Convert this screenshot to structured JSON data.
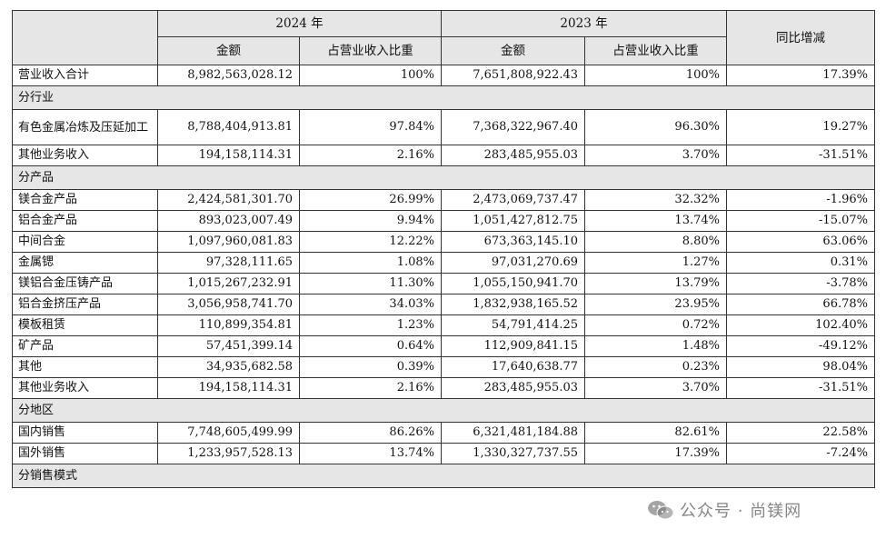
{
  "header": {
    "year_2024": "2024 年",
    "year_2023": "2023 年",
    "amount": "金额",
    "ratio": "占营业收入比重",
    "yoy": "同比增减"
  },
  "rows": [
    {
      "type": "data",
      "label": "营业收入合计",
      "a2024": "8,982,563,028.12",
      "r2024": "100%",
      "a2023": "7,651,808,922.43",
      "r2023": "100%",
      "yoy": "17.39%"
    },
    {
      "type": "section",
      "label": "分行业"
    },
    {
      "type": "data",
      "tall": true,
      "label": "有色金属冶炼及压延加工",
      "a2024": "8,788,404,913.81",
      "r2024": "97.84%",
      "a2023": "7,368,322,967.40",
      "r2023": "96.30%",
      "yoy": "19.27%"
    },
    {
      "type": "data",
      "label": "其他业务收入",
      "a2024": "194,158,114.31",
      "r2024": "2.16%",
      "a2023": "283,485,955.03",
      "r2023": "3.70%",
      "yoy": "-31.51%"
    },
    {
      "type": "section",
      "label": "分产品"
    },
    {
      "type": "data",
      "label": "镁合金产品",
      "a2024": "2,424,581,301.70",
      "r2024": "26.99%",
      "a2023": "2,473,069,737.47",
      "r2023": "32.32%",
      "yoy": "-1.96%"
    },
    {
      "type": "data",
      "label": "铝合金产品",
      "a2024": "893,023,007.49",
      "r2024": "9.94%",
      "a2023": "1,051,427,812.75",
      "r2023": "13.74%",
      "yoy": "-15.07%"
    },
    {
      "type": "data",
      "label": "中间合金",
      "a2024": "1,097,960,081.83",
      "r2024": "12.22%",
      "a2023": "673,363,145.10",
      "r2023": "8.80%",
      "yoy": "63.06%"
    },
    {
      "type": "data",
      "label": "金属锶",
      "a2024": "97,328,111.65",
      "r2024": "1.08%",
      "a2023": "97,031,270.69",
      "r2023": "1.27%",
      "yoy": "0.31%"
    },
    {
      "type": "data",
      "label": "镁铝合金压铸产品",
      "a2024": "1,015,267,232.91",
      "r2024": "11.30%",
      "a2023": "1,055,150,941.70",
      "r2023": "13.79%",
      "yoy": "-3.78%"
    },
    {
      "type": "data",
      "label": "铝合金挤压产品",
      "a2024": "3,056,958,741.70",
      "r2024": "34.03%",
      "a2023": "1,832,938,165.52",
      "r2023": "23.95%",
      "yoy": "66.78%"
    },
    {
      "type": "data",
      "label": "模板租赁",
      "a2024": "110,899,354.81",
      "r2024": "1.23%",
      "a2023": "54,791,414.25",
      "r2023": "0.72%",
      "yoy": "102.40%"
    },
    {
      "type": "data",
      "label": "矿产品",
      "a2024": "57,451,399.14",
      "r2024": "0.64%",
      "a2023": "112,909,841.15",
      "r2023": "1.48%",
      "yoy": "-49.12%"
    },
    {
      "type": "data",
      "label": "其他",
      "a2024": "34,935,682.58",
      "r2024": "0.39%",
      "a2023": "17,640,638.77",
      "r2023": "0.23%",
      "yoy": "98.04%"
    },
    {
      "type": "data",
      "label": "其他业务收入",
      "a2024": "194,158,114.31",
      "r2024": "2.16%",
      "a2023": "283,485,955.03",
      "r2023": "3.70%",
      "yoy": "-31.51%"
    },
    {
      "type": "section",
      "label": "分地区"
    },
    {
      "type": "data",
      "label": "国内销售",
      "a2024": "7,748,605,499.99",
      "r2024": "86.26%",
      "a2023": "6,321,481,184.88",
      "r2023": "82.61%",
      "yoy": "22.58%"
    },
    {
      "type": "data",
      "label": "国外销售",
      "a2024": "1,233,957,528.13",
      "r2024": "13.74%",
      "a2023": "1,330,327,737.55",
      "r2023": "17.39%",
      "yoy": "-7.24%"
    },
    {
      "type": "section",
      "label": "分销售模式"
    }
  ],
  "watermark": {
    "icon": "wechat-icon",
    "text": "公众号 · 尚镁网"
  }
}
